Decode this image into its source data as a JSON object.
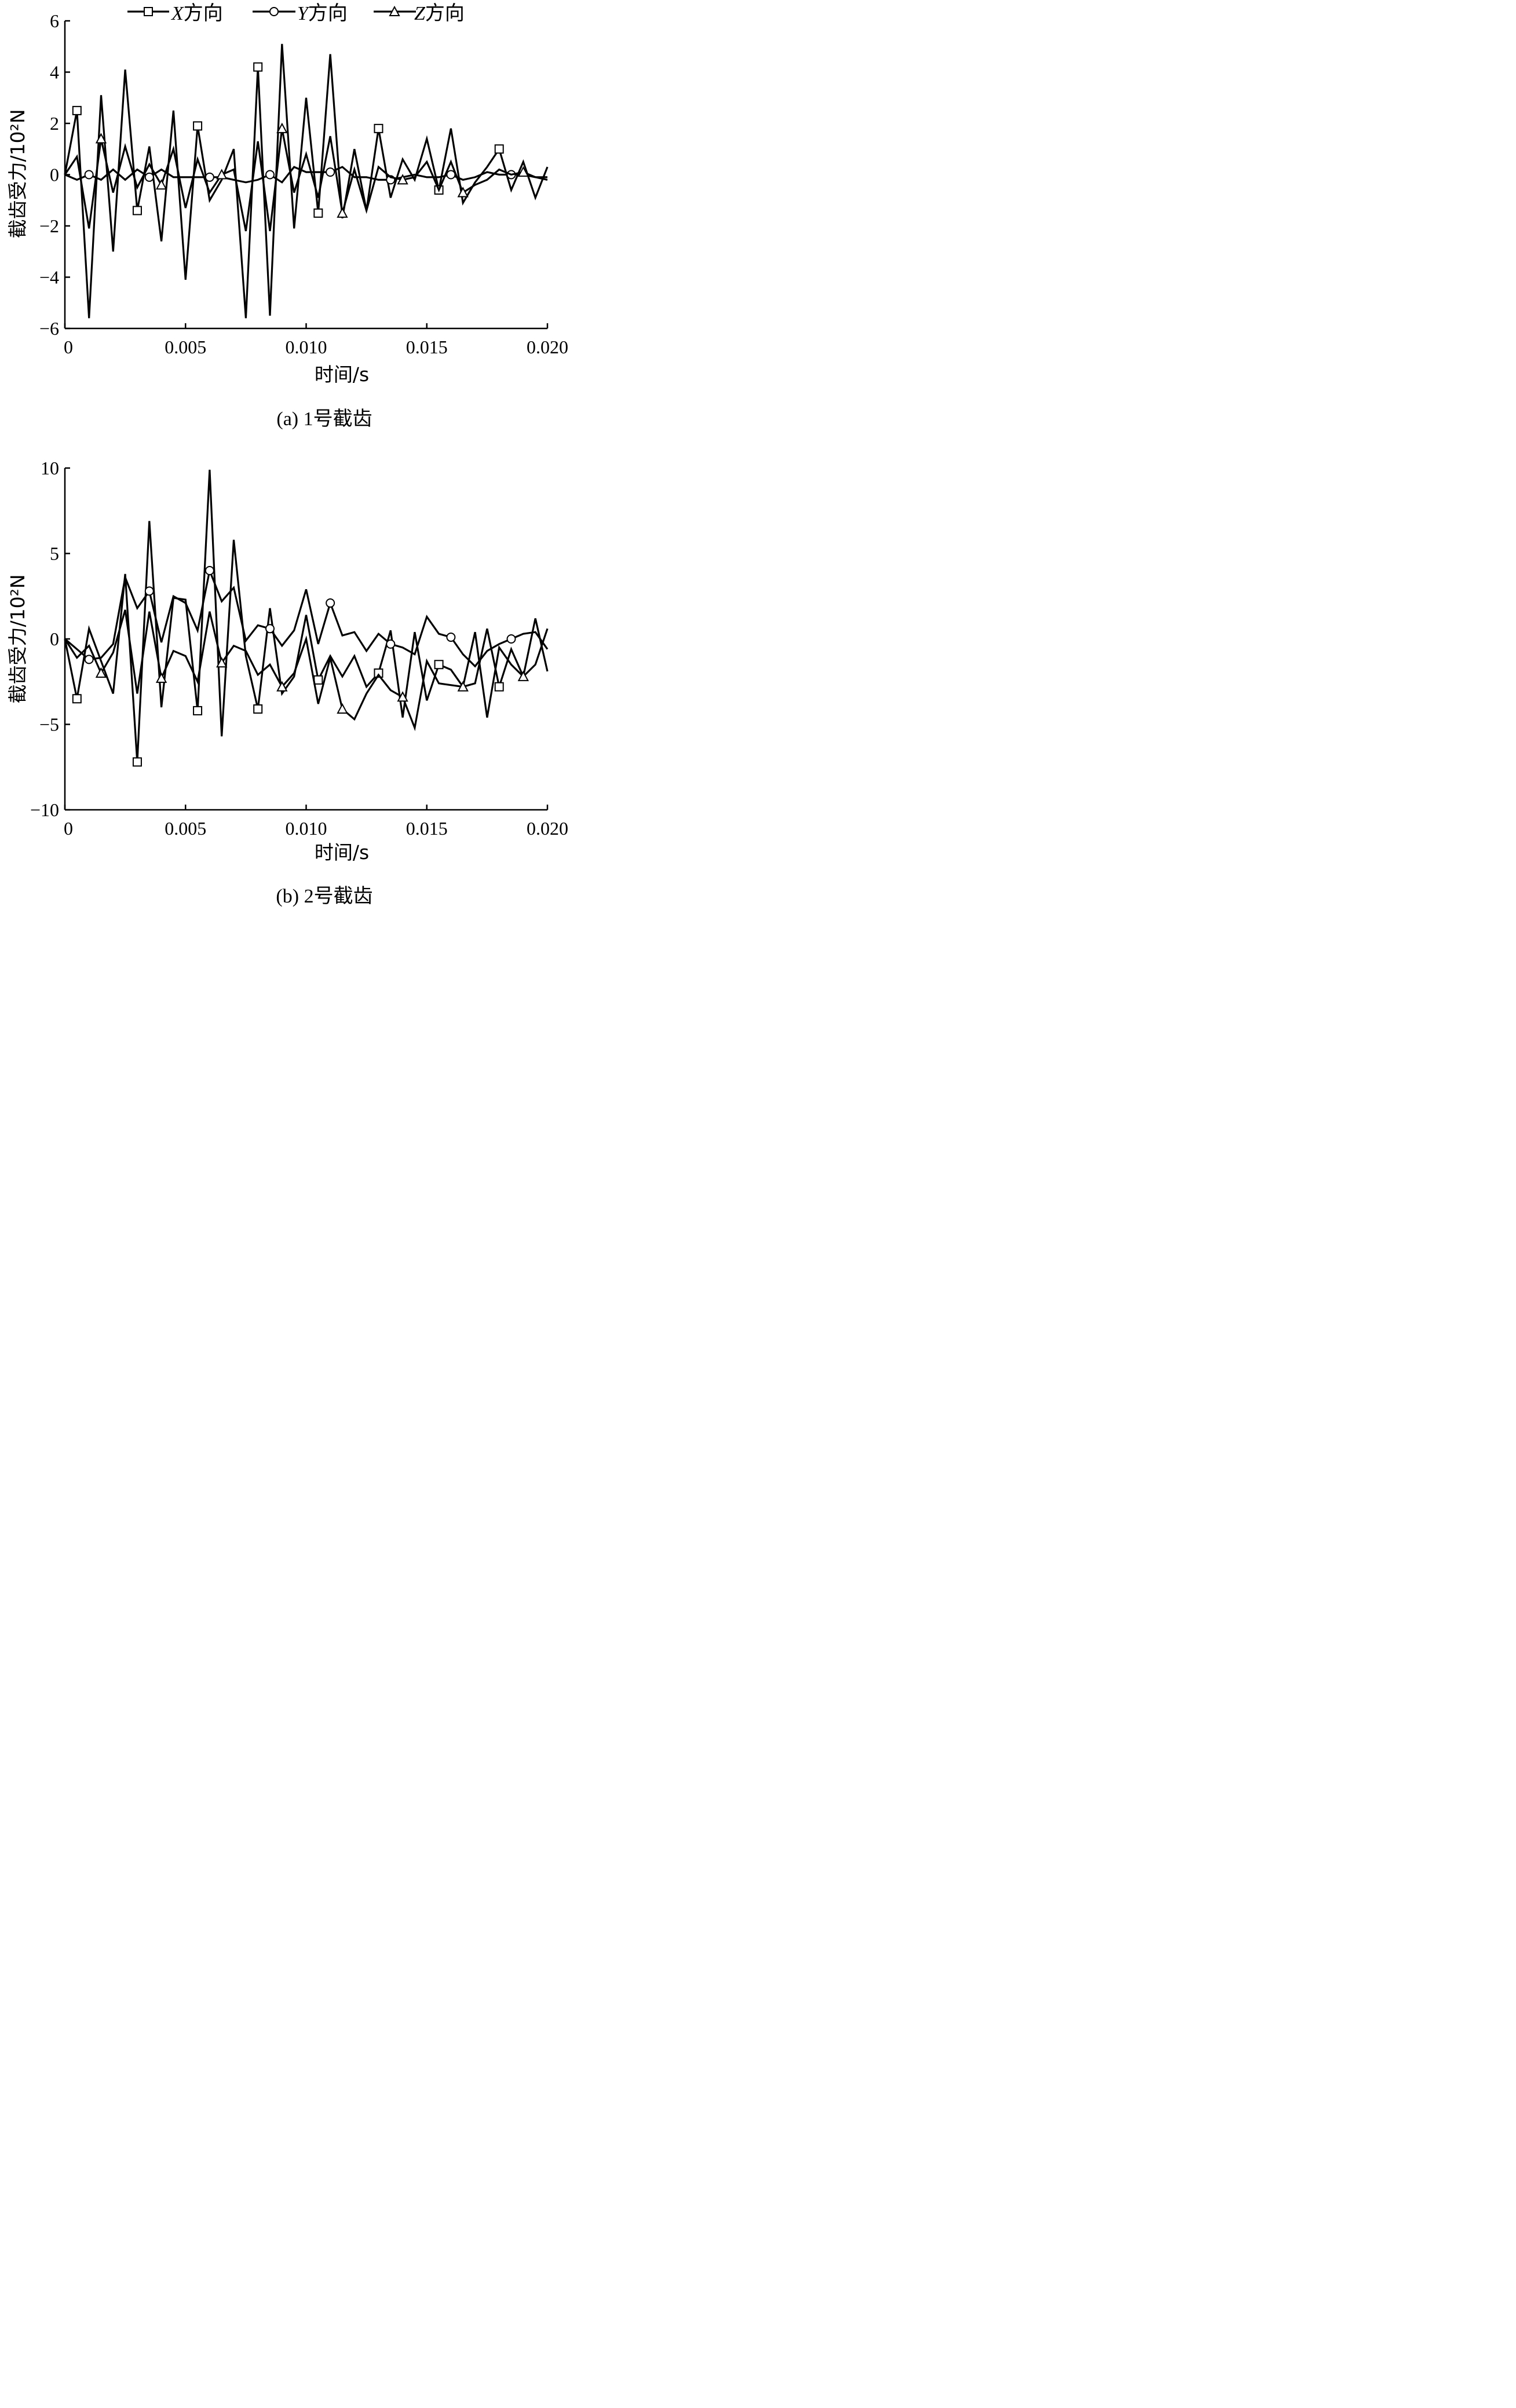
{
  "legend": {
    "entries": [
      {
        "var": "X",
        "text": "方向",
        "marker": "square"
      },
      {
        "var": "Y",
        "text": "方向",
        "marker": "circle"
      },
      {
        "var": "Z",
        "text": "方向",
        "marker": "triangle"
      }
    ]
  },
  "chart_data": [
    {
      "type": "line",
      "caption": "(a)  1号截齿",
      "xlabel": "时间/s",
      "ylabel": "截齿受力/10²N",
      "xlim": [
        0,
        0.02
      ],
      "ylim": [
        -6,
        6
      ],
      "xticks": [
        0,
        0.005,
        0.01,
        0.015,
        0.02
      ],
      "xtick_labels": [
        "0",
        "0.005",
        "0.010",
        "0.015",
        "0.020"
      ],
      "yticks": [
        -6,
        -4,
        -2,
        0,
        2,
        4,
        6
      ],
      "ytick_labels": [
        "−6",
        "−4",
        "−2",
        "0",
        "2",
        "4",
        "6"
      ],
      "marker_every": 10,
      "series": [
        {
          "name": "X方向",
          "marker": "square",
          "x": [
            0,
            0.0005,
            0.001,
            0.0015,
            0.002,
            0.0025,
            0.003,
            0.0035,
            0.004,
            0.0045,
            0.005,
            0.0055,
            0.006,
            0.0065,
            0.007,
            0.0075,
            0.008,
            0.0085,
            0.009,
            0.0095,
            0.01,
            0.0105,
            0.011,
            0.0115,
            0.012,
            0.0125,
            0.013,
            0.0135,
            0.014,
            0.0145,
            0.015,
            0.0155,
            0.016,
            0.0165,
            0.017,
            0.0175,
            0.018,
            0.0185,
            0.019,
            0.0195,
            0.02
          ],
          "y": [
            0,
            2.5,
            -5.6,
            3.1,
            -3.0,
            4.1,
            -1.4,
            1.1,
            -2.6,
            2.5,
            -4.1,
            1.9,
            -1.0,
            -0.2,
            1.0,
            -5.6,
            4.2,
            -5.5,
            5.1,
            -2.1,
            3.0,
            -1.5,
            4.7,
            -1.7,
            1.0,
            -1.4,
            1.8,
            -0.9,
            0.6,
            -0.2,
            1.4,
            -0.6,
            1.8,
            -1.1,
            -0.3,
            0.3,
            1.0,
            -0.6,
            0.5,
            -0.9,
            0.3
          ]
        },
        {
          "name": "Y方向",
          "marker": "circle",
          "x": [
            0,
            0.0005,
            0.001,
            0.0015,
            0.002,
            0.0025,
            0.003,
            0.0035,
            0.004,
            0.0045,
            0.005,
            0.0055,
            0.006,
            0.0065,
            0.007,
            0.0075,
            0.008,
            0.0085,
            0.009,
            0.0095,
            0.01,
            0.0105,
            0.011,
            0.0115,
            0.012,
            0.0125,
            0.013,
            0.0135,
            0.014,
            0.0145,
            0.015,
            0.0155,
            0.016,
            0.0165,
            0.017,
            0.0175,
            0.018,
            0.0185,
            0.019,
            0.0195,
            0.02
          ],
          "y": [
            0,
            -0.2,
            0.0,
            -0.2,
            0.2,
            -0.2,
            0.2,
            -0.1,
            0.2,
            -0.1,
            -0.1,
            -0.1,
            -0.1,
            -0.1,
            -0.2,
            -0.3,
            -0.2,
            0.0,
            -0.3,
            0.3,
            0.1,
            0.1,
            0.1,
            0.3,
            -0.1,
            -0.1,
            -0.2,
            -0.2,
            -0.1,
            0.0,
            -0.1,
            -0.1,
            0.0,
            -0.2,
            -0.1,
            0.1,
            0.0,
            0.0,
            0.0,
            -0.1,
            -0.1
          ]
        },
        {
          "name": "Z方向",
          "marker": "triangle",
          "x": [
            0,
            0.0005,
            0.001,
            0.0015,
            0.002,
            0.0025,
            0.003,
            0.0035,
            0.004,
            0.0045,
            0.005,
            0.0055,
            0.006,
            0.0065,
            0.007,
            0.0075,
            0.008,
            0.0085,
            0.009,
            0.0095,
            0.01,
            0.0105,
            0.011,
            0.0115,
            0.012,
            0.0125,
            0.013,
            0.0135,
            0.014,
            0.0145,
            0.015,
            0.0155,
            0.016,
            0.0165,
            0.017,
            0.0175,
            0.018,
            0.0185,
            0.019,
            0.0195,
            0.02
          ],
          "y": [
            0,
            0.7,
            -2.1,
            1.4,
            -0.7,
            1.1,
            -0.5,
            0.4,
            -0.4,
            1.0,
            -1.3,
            0.6,
            -0.7,
            0.0,
            0.2,
            -2.2,
            1.3,
            -2.2,
            1.8,
            -0.7,
            0.8,
            -0.9,
            1.5,
            -1.5,
            0.2,
            -1.4,
            0.3,
            -0.1,
            -0.2,
            -0.1,
            0.5,
            -0.6,
            0.5,
            -0.7,
            -0.4,
            -0.2,
            0.2,
            0.0,
            0.1,
            -0.1,
            -0.2
          ]
        }
      ]
    },
    {
      "type": "line",
      "caption": "(b)  2号截齿",
      "xlabel": "时间/s",
      "ylabel": "截齿受力/10²N",
      "xlim": [
        0,
        0.02
      ],
      "ylim": [
        -10,
        10
      ],
      "xticks": [
        0,
        0.005,
        0.01,
        0.015,
        0.02
      ],
      "xtick_labels": [
        "0",
        "0.005",
        "0.010",
        "0.015",
        "0.020"
      ],
      "yticks": [
        -10,
        -5,
        0,
        5,
        10
      ],
      "ytick_labels": [
        "−10",
        "−5",
        "0",
        "5",
        "10"
      ],
      "marker_every": 10,
      "series": [
        {
          "name": "X方向",
          "marker": "square",
          "x": [
            0,
            0.0005,
            0.001,
            0.0015,
            0.002,
            0.0025,
            0.003,
            0.0035,
            0.004,
            0.0045,
            0.005,
            0.0055,
            0.006,
            0.0065,
            0.007,
            0.0075,
            0.008,
            0.0085,
            0.009,
            0.0095,
            0.01,
            0.0105,
            0.011,
            0.0115,
            0.012,
            0.0125,
            0.013,
            0.0135,
            0.014,
            0.0145,
            0.015,
            0.0155,
            0.016,
            0.0165,
            0.017,
            0.0175,
            0.018,
            0.0185,
            0.019,
            0.0195,
            0.02
          ],
          "y": [
            0,
            -3.5,
            0.6,
            -1.3,
            -3.2,
            3.8,
            -7.2,
            6.9,
            -4.0,
            2.4,
            2.3,
            -4.2,
            9.9,
            -5.7,
            5.8,
            -1.0,
            -4.1,
            1.8,
            -3.2,
            -2.2,
            1.4,
            -2.4,
            -1.0,
            -2.2,
            -1.0,
            -2.8,
            -2.0,
            0.5,
            -4.6,
            0.4,
            -3.6,
            -1.5,
            -1.8,
            -2.8,
            -2.6,
            0.6,
            -2.8,
            -0.6,
            -2.2,
            1.2,
            -1.9
          ]
        },
        {
          "name": "Y方向",
          "marker": "circle",
          "x": [
            0,
            0.0005,
            0.001,
            0.0015,
            0.002,
            0.0025,
            0.003,
            0.0035,
            0.004,
            0.0045,
            0.005,
            0.0055,
            0.006,
            0.0065,
            0.007,
            0.0075,
            0.008,
            0.0085,
            0.009,
            0.0095,
            0.01,
            0.0105,
            0.011,
            0.0115,
            0.012,
            0.0125,
            0.013,
            0.0135,
            0.014,
            0.0145,
            0.015,
            0.0155,
            0.016,
            0.0165,
            0.017,
            0.0175,
            0.018,
            0.0185,
            0.019,
            0.0195,
            0.02
          ],
          "y": [
            0,
            -0.6,
            -1.2,
            -1.1,
            -0.3,
            3.6,
            1.8,
            2.8,
            -0.2,
            2.5,
            2.1,
            0.5,
            4.0,
            2.2,
            3.0,
            -0.1,
            0.8,
            0.6,
            -0.4,
            0.5,
            2.9,
            -0.3,
            2.1,
            0.2,
            0.4,
            -0.7,
            0.3,
            -0.3,
            -0.5,
            -0.9,
            1.3,
            0.3,
            0.1,
            -0.9,
            -1.6,
            -0.7,
            -0.3,
            0.0,
            0.3,
            0.4,
            -0.6
          ]
        },
        {
          "name": "Z方向",
          "marker": "triangle",
          "x": [
            0,
            0.0005,
            0.001,
            0.0015,
            0.002,
            0.0025,
            0.003,
            0.0035,
            0.004,
            0.0045,
            0.005,
            0.0055,
            0.006,
            0.0065,
            0.007,
            0.0075,
            0.008,
            0.0085,
            0.009,
            0.0095,
            0.01,
            0.0105,
            0.011,
            0.0115,
            0.012,
            0.0125,
            0.013,
            0.0135,
            0.014,
            0.0145,
            0.015,
            0.0155,
            0.016,
            0.0165,
            0.017,
            0.0175,
            0.018,
            0.0185,
            0.019,
            0.0195,
            0.02
          ],
          "y": [
            0,
            -1.1,
            -0.4,
            -2.0,
            -0.8,
            1.7,
            -3.2,
            1.6,
            -2.3,
            -0.7,
            -1.0,
            -2.5,
            1.6,
            -1.4,
            -0.4,
            -0.7,
            -2.1,
            -1.5,
            -2.8,
            -2.0,
            0.0,
            -3.8,
            -1.1,
            -4.1,
            -4.7,
            -3.2,
            -2.1,
            -3.0,
            -3.4,
            -5.2,
            -1.3,
            -2.6,
            -2.7,
            -2.8,
            0.4,
            -4.6,
            -0.5,
            -1.5,
            -2.2,
            -1.5,
            0.6
          ]
        }
      ]
    }
  ]
}
